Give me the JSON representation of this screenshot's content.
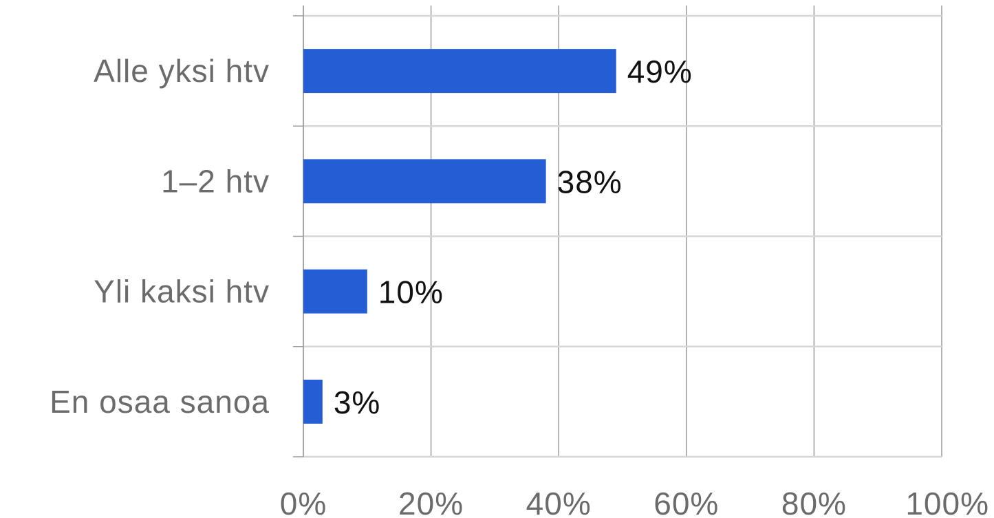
{
  "chart_data": {
    "type": "bar",
    "orientation": "horizontal",
    "categories": [
      "Alle yksi htv",
      "1–2 htv",
      "Yli kaksi htv",
      "En osaa sanoa"
    ],
    "values": [
      49,
      38,
      10,
      3
    ],
    "value_labels": [
      "49%",
      "38%",
      "10%",
      "3%"
    ],
    "xlim": [
      0,
      100
    ],
    "x_ticks": [
      0,
      20,
      40,
      60,
      80,
      100
    ],
    "x_tick_labels": [
      "0%",
      "20%",
      "40%",
      "60%",
      "80%",
      "100%"
    ],
    "grid": true,
    "legend": "none",
    "colors": {
      "bar": "#255ed4",
      "grid": "#d6d6d6",
      "category_text": "#6b6b6b",
      "value_text": "#111111"
    }
  }
}
